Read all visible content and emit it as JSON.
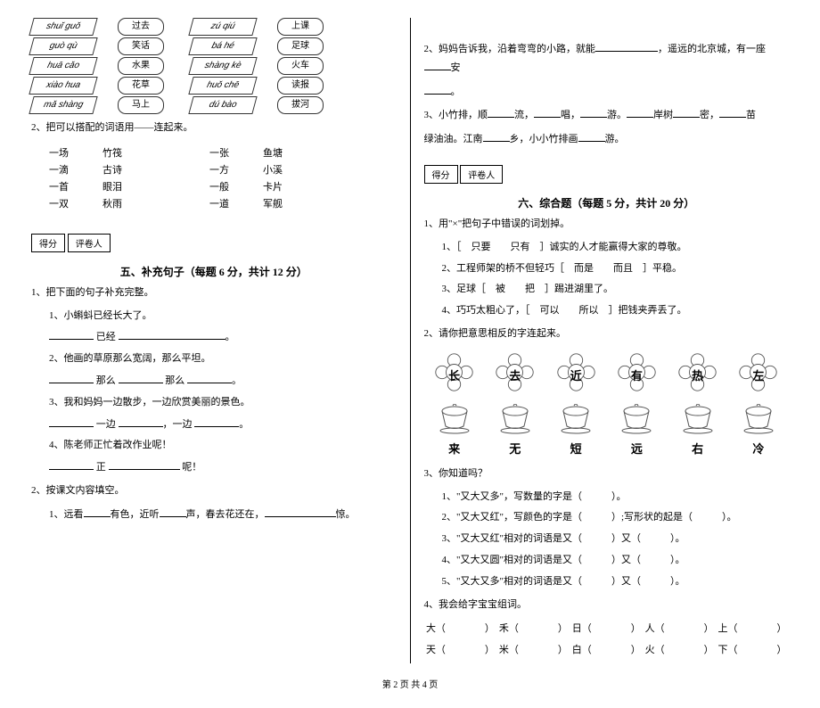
{
  "pinyin_left": [
    {
      "py": "shuǐ guǒ",
      "word": "过去"
    },
    {
      "py": "guò qù",
      "word": "笑话"
    },
    {
      "py": "huā cǎo",
      "word": "水果"
    },
    {
      "py": "xiào hua",
      "word": "花草"
    },
    {
      "py": "mǎ shàng",
      "word": "马上"
    }
  ],
  "pinyin_right": [
    {
      "py": "zú qiú",
      "word": "上课"
    },
    {
      "py": "bá hé",
      "word": "足球"
    },
    {
      "py": "shàng kè",
      "word": "火车"
    },
    {
      "py": "huǒ chē",
      "word": "读报"
    },
    {
      "py": "dú bào",
      "word": "拔河"
    }
  ],
  "q2": {
    "label": "2、把可以搭配的词语用——连起来。",
    "left": [
      [
        "一场",
        "竹筏"
      ],
      [
        "一滴",
        "古诗"
      ],
      [
        "一首",
        "眼泪"
      ],
      [
        "一双",
        "秋雨"
      ]
    ],
    "right": [
      [
        "一张",
        "鱼塘"
      ],
      [
        "一方",
        "小溪"
      ],
      [
        "一般",
        "卡片"
      ],
      [
        "一道",
        "军舰"
      ]
    ]
  },
  "score": {
    "a": "得分",
    "b": "评卷人"
  },
  "sec5": {
    "title": "五、补充句子（每题 6 分，共计 12 分）",
    "q1": "1、把下面的句子补充完整。",
    "items": [
      "1、小蝌蚪已经长大了。",
      "2、他画的草原那么宽阔，那么平坦。",
      "3、我和妈妈一边散步，一边欣赏美丽的景色。",
      "4、陈老师正忙着改作业呢！"
    ],
    "fills": [
      "已经",
      "那么",
      "那么",
      "一边",
      "，一边",
      "正",
      "呢！"
    ],
    "q2": "2、按课文内容填空。",
    "q2_1": "1、远看",
    "q2_2": "有色，近听",
    "q2_3": "声，春去花还在，",
    "q2_4": "惊。"
  },
  "right_top": {
    "q2": "2、妈妈告诉我，沿着弯弯的小路，就能",
    "q2b": "，遥远的北京城，有一座",
    "q2c": "安",
    "q3a": "3、小竹排，顺",
    "q3b": "流，",
    "q3c": "唱，",
    "q3d": "游。",
    "q3e": "岸树",
    "q3f": "密，",
    "q3g": "苗",
    "q3h": "绿油油。江南",
    "q3i": "乡，小小竹排画",
    "q3j": "游。"
  },
  "sec6": {
    "title": "六、综合题（每题 5 分，共计 20 分）",
    "q1": "1、用\"×\"把句子中错误的词划掉。",
    "items": [
      "1、［　只要　　只有　］诚实的人才能赢得大家的尊敬。",
      "2、工程师架的桥不但轻巧［　而是　　而且　］平稳。",
      "3、足球［　被　　把　］踢进湖里了。",
      "4、巧巧太粗心了，［　可以　　所以　］把钱夹弄丢了。"
    ],
    "q2": "2、请你把意思相反的字连起来。"
  },
  "flowers": [
    "长",
    "去",
    "近",
    "有",
    "热",
    "左"
  ],
  "cups": [
    "来",
    "无",
    "短",
    "远",
    "右",
    "冷"
  ],
  "q3": {
    "title": "3、你知道吗？",
    "items": [
      "1、\"又大又多\"，写数量的字是（　　　）。",
      "2、\"又大又红\"，写颜色的字是（　　　）;写形状的起是（　　　）。",
      "3、\"又大又红\"相对的词语是又（　　　）又（　　　）。",
      "4、\"又大又圆\"相对的词语是又（　　　）又（　　　）。",
      "5、\"又大又多\"相对的词语是又（　　　）又（　　　）。"
    ]
  },
  "q4": {
    "title": "4、我会给字宝宝组词。",
    "row1": [
      [
        "大",
        "禾",
        "日",
        "人",
        "上"
      ]
    ],
    "row2": [
      [
        "天",
        "米",
        "白",
        "火",
        "下"
      ]
    ]
  },
  "footer": "第 2 页 共 4 页"
}
